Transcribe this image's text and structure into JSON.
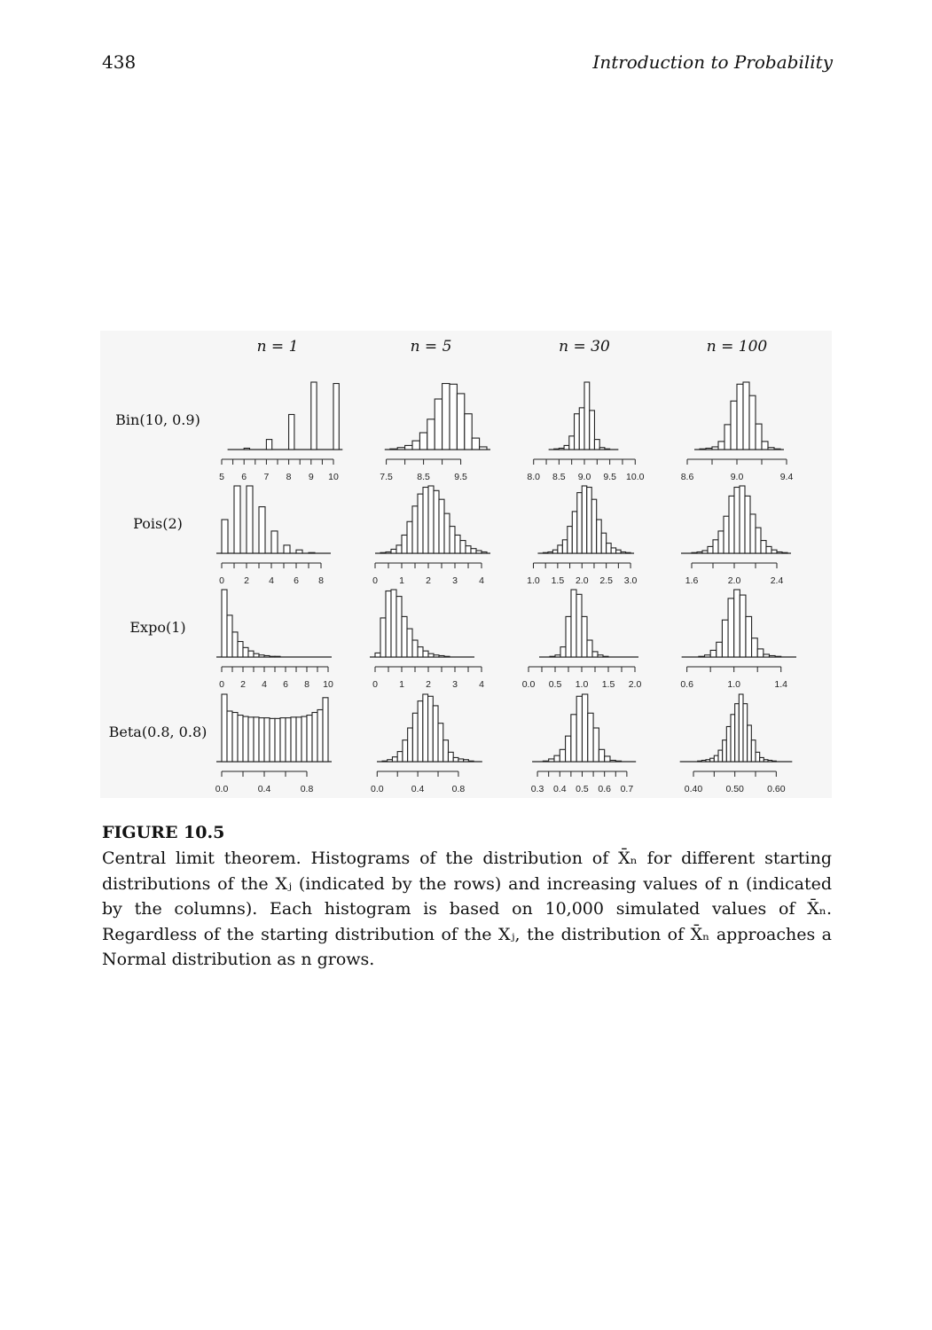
{
  "header": {
    "page_number": "438",
    "running_title": "Introduction to Probability"
  },
  "columns": [
    "n = 1",
    "n = 5",
    "n = 30",
    "n = 100"
  ],
  "rows": [
    "Bin(10, 0.9)",
    "Pois(2)",
    "Expo(1)",
    "Beta(0.8, 0.8)"
  ],
  "chart_data": [
    {
      "type": "bar",
      "row": "Bin(10, 0.9)",
      "column": "n = 1",
      "xlim": [
        5,
        10
      ],
      "ticks": [
        "5",
        "6",
        "7",
        "8",
        "9",
        "10"
      ],
      "bins": [
        5.5,
        5.75,
        6,
        6.25,
        6.5,
        6.75,
        7,
        7.25,
        7.5,
        7.75,
        8,
        8.25,
        8.5,
        8.75,
        9,
        9.25,
        9.5,
        9.75,
        10
      ],
      "values": [
        0,
        0,
        0.02,
        0,
        0,
        0,
        0.15,
        0,
        0,
        0,
        0.52,
        0,
        0,
        0,
        1.0,
        0,
        0,
        0,
        0.98
      ]
    },
    {
      "type": "bar",
      "row": "Bin(10, 0.9)",
      "column": "n = 5",
      "xlim": [
        7.2,
        10.2
      ],
      "ticks": [
        "7.5",
        "8.5",
        "9.5"
      ],
      "bins": [
        7.6,
        7.8,
        8.0,
        8.2,
        8.4,
        8.6,
        8.8,
        9.0,
        9.2,
        9.4,
        9.6,
        9.8,
        10.0
      ],
      "values": [
        0.01,
        0.03,
        0.06,
        0.13,
        0.25,
        0.45,
        0.75,
        0.98,
        0.97,
        0.83,
        0.53,
        0.17,
        0.04
      ]
    },
    {
      "type": "bar",
      "row": "Bin(10, 0.9)",
      "column": "n = 30",
      "xlim": [
        7.9,
        10.1
      ],
      "ticks": [
        "8.0",
        "8.5",
        "9.0",
        "9.5",
        "10.0"
      ],
      "bins": [
        8.4,
        8.5,
        8.6,
        8.7,
        8.8,
        8.9,
        9.0,
        9.1,
        9.2,
        9.3,
        9.4,
        9.5
      ],
      "values": [
        0.01,
        0.02,
        0.06,
        0.2,
        0.53,
        0.62,
        1.0,
        0.58,
        0.15,
        0.03,
        0.01,
        0.0
      ]
    },
    {
      "type": "bar",
      "row": "Bin(10, 0.9)",
      "column": "n = 100",
      "xlim": [
        8.55,
        9.45
      ],
      "ticks": [
        "8.6",
        "9.0",
        "9.4"
      ],
      "bins": [
        8.7,
        8.75,
        8.8,
        8.85,
        8.9,
        8.95,
        9.0,
        9.05,
        9.1,
        9.15,
        9.2,
        9.25,
        9.3
      ],
      "values": [
        0.01,
        0.02,
        0.04,
        0.12,
        0.37,
        0.72,
        0.97,
        1.0,
        0.8,
        0.38,
        0.12,
        0.03,
        0.01
      ]
    },
    {
      "type": "bar",
      "row": "Pois(2)",
      "column": "n = 1",
      "xlim": [
        0,
        9
      ],
      "ticks": [
        "0",
        "2",
        "4",
        "6",
        "8"
      ],
      "bins": [
        0,
        0.5,
        1,
        1.5,
        2,
        2.5,
        3,
        3.5,
        4,
        4.5,
        5,
        5.5,
        6,
        6.5,
        7,
        7.5,
        8
      ],
      "values": [
        0.5,
        0,
        1.0,
        0,
        1.0,
        0,
        0.69,
        0,
        0.33,
        0,
        0.12,
        0,
        0.05,
        0,
        0.01,
        0,
        0.005
      ]
    },
    {
      "type": "bar",
      "row": "Pois(2)",
      "column": "n = 5",
      "xlim": [
        0,
        4.2
      ],
      "ticks": [
        "0",
        "1",
        "2",
        "3",
        "4"
      ],
      "bins": [
        0.2,
        0.4,
        0.6,
        0.8,
        1.0,
        1.2,
        1.4,
        1.6,
        1.8,
        2.0,
        2.2,
        2.4,
        2.6,
        2.8,
        3.0,
        3.2,
        3.4,
        3.6,
        3.8,
        4.0
      ],
      "values": [
        0.01,
        0.02,
        0.06,
        0.12,
        0.27,
        0.47,
        0.7,
        0.88,
        0.98,
        1.0,
        0.93,
        0.8,
        0.59,
        0.4,
        0.27,
        0.19,
        0.11,
        0.07,
        0.04,
        0.02
      ]
    },
    {
      "type": "bar",
      "row": "Pois(2)",
      "column": "n = 30",
      "xlim": [
        0.9,
        3.2
      ],
      "ticks": [
        "1.0",
        "1.5",
        "2.0",
        "2.5",
        "3.0"
      ],
      "bins": [
        1.2,
        1.3,
        1.4,
        1.5,
        1.6,
        1.7,
        1.8,
        1.9,
        2.0,
        2.1,
        2.2,
        2.3,
        2.4,
        2.5,
        2.6,
        2.7,
        2.8,
        2.9
      ],
      "values": [
        0.01,
        0.02,
        0.05,
        0.12,
        0.2,
        0.4,
        0.62,
        0.9,
        1.0,
        0.98,
        0.8,
        0.5,
        0.3,
        0.15,
        0.08,
        0.05,
        0.02,
        0.01
      ]
    },
    {
      "type": "bar",
      "row": "Pois(2)",
      "column": "n = 100",
      "xlim": [
        1.5,
        2.55
      ],
      "ticks": [
        "1.6",
        "2.0",
        "2.4"
      ],
      "bins": [
        1.55,
        1.6,
        1.65,
        1.7,
        1.75,
        1.8,
        1.85,
        1.9,
        1.95,
        2.0,
        2.05,
        2.1,
        2.15,
        2.2,
        2.25,
        2.3,
        2.35,
        2.4,
        2.45
      ],
      "values": [
        0.0,
        0.01,
        0.02,
        0.04,
        0.1,
        0.2,
        0.33,
        0.55,
        0.85,
        0.98,
        1.0,
        0.85,
        0.58,
        0.38,
        0.19,
        0.1,
        0.05,
        0.02,
        0.01
      ]
    },
    {
      "type": "bar",
      "row": "Expo(1)",
      "column": "n = 1",
      "xlim": [
        0,
        10.5
      ],
      "ticks": [
        "0",
        "2",
        "4",
        "6",
        "8",
        "10"
      ],
      "bins": [
        0,
        0.5,
        1,
        1.5,
        2,
        2.5,
        3,
        3.5,
        4,
        4.5,
        5,
        5.5,
        6,
        6.5,
        7,
        7.5,
        8,
        8.5,
        9,
        9.5
      ],
      "values": [
        1.0,
        0.62,
        0.37,
        0.23,
        0.14,
        0.09,
        0.05,
        0.03,
        0.02,
        0.01,
        0.01,
        0.005,
        0.003,
        0.002,
        0.001,
        0.001,
        0.0,
        0.0,
        0.0,
        0.0
      ]
    },
    {
      "type": "bar",
      "row": "Expo(1)",
      "column": "n = 5",
      "xlim": [
        0,
        4.2
      ],
      "ticks": [
        "0",
        "1",
        "2",
        "3",
        "4"
      ],
      "bins": [
        0,
        0.2,
        0.4,
        0.6,
        0.8,
        1.0,
        1.2,
        1.4,
        1.6,
        1.8,
        2.0,
        2.2,
        2.4,
        2.6,
        2.8,
        3.0,
        3.2,
        3.4
      ],
      "values": [
        0.06,
        0.58,
        0.98,
        1.0,
        0.9,
        0.6,
        0.42,
        0.25,
        0.15,
        0.09,
        0.05,
        0.03,
        0.02,
        0.01,
        0.005,
        0.003,
        0.001,
        0.001
      ]
    },
    {
      "type": "bar",
      "row": "Expo(1)",
      "column": "n = 30",
      "xlim": [
        0,
        2.1
      ],
      "ticks": [
        "0.0",
        "0.5",
        "1.0",
        "1.5",
        "2.0"
      ],
      "bins": [
        0.3,
        0.4,
        0.5,
        0.6,
        0.7,
        0.8,
        0.9,
        1.0,
        1.1,
        1.2,
        1.3,
        1.4,
        1.5,
        1.6,
        1.7,
        1.8,
        1.9
      ],
      "values": [
        0.0,
        0.01,
        0.03,
        0.15,
        0.6,
        1.0,
        0.93,
        0.6,
        0.25,
        0.08,
        0.03,
        0.01,
        0.005,
        0.003,
        0.001,
        0.0,
        0.0
      ]
    },
    {
      "type": "bar",
      "row": "Expo(1)",
      "column": "n = 100",
      "xlim": [
        0.55,
        1.5
      ],
      "ticks": [
        "0.6",
        "1.0",
        "1.4"
      ],
      "bins": [
        0.6,
        0.65,
        0.7,
        0.75,
        0.8,
        0.85,
        0.9,
        0.95,
        1.0,
        1.05,
        1.1,
        1.15,
        1.2,
        1.25,
        1.3,
        1.35,
        1.4,
        1.45
      ],
      "values": [
        0.0,
        0.005,
        0.01,
        0.03,
        0.1,
        0.22,
        0.55,
        0.87,
        1.0,
        0.92,
        0.6,
        0.28,
        0.12,
        0.04,
        0.02,
        0.01,
        0.005,
        0.002
      ]
    },
    {
      "type": "bar",
      "row": "Beta(0.8, 0.8)",
      "column": "n = 1",
      "xlim": [
        0,
        1.05
      ],
      "ticks": [
        "0.0",
        "0.4",
        "0.8"
      ],
      "bins": [
        0,
        0.05,
        0.1,
        0.15,
        0.2,
        0.25,
        0.3,
        0.35,
        0.4,
        0.45,
        0.5,
        0.55,
        0.6,
        0.65,
        0.7,
        0.75,
        0.8,
        0.85,
        0.9,
        0.95
      ],
      "values": [
        1.0,
        0.75,
        0.73,
        0.69,
        0.67,
        0.66,
        0.66,
        0.65,
        0.65,
        0.64,
        0.64,
        0.65,
        0.65,
        0.66,
        0.66,
        0.67,
        0.69,
        0.73,
        0.77,
        0.95
      ]
    },
    {
      "type": "bar",
      "row": "Beta(0.8, 0.8)",
      "column": "n = 5",
      "xlim": [
        -0.02,
        1.08
      ],
      "ticks": [
        "0.0",
        "0.4",
        "0.8"
      ],
      "bins": [
        0.05,
        0.1,
        0.15,
        0.2,
        0.25,
        0.3,
        0.35,
        0.4,
        0.45,
        0.5,
        0.55,
        0.6,
        0.65,
        0.7,
        0.75,
        0.8,
        0.85,
        0.9,
        0.95
      ],
      "values": [
        0.01,
        0.03,
        0.07,
        0.15,
        0.32,
        0.5,
        0.72,
        0.9,
        1.0,
        0.97,
        0.83,
        0.57,
        0.32,
        0.14,
        0.06,
        0.04,
        0.03,
        0.01,
        0.005
      ]
    },
    {
      "type": "bar",
      "row": "Beta(0.8, 0.8)",
      "column": "n = 30",
      "xlim": [
        0.26,
        0.76
      ],
      "ticks": [
        "0.3",
        "0.4",
        "0.5",
        "0.6",
        "0.7"
      ],
      "bins": [
        0.3,
        0.325,
        0.35,
        0.375,
        0.4,
        0.425,
        0.45,
        0.475,
        0.5,
        0.525,
        0.55,
        0.575,
        0.6,
        0.625,
        0.65,
        0.675,
        0.7
      ],
      "values": [
        0.005,
        0.01,
        0.04,
        0.09,
        0.18,
        0.38,
        0.7,
        0.97,
        1.0,
        0.72,
        0.5,
        0.18,
        0.08,
        0.02,
        0.01,
        0.005,
        0.002
      ]
    },
    {
      "type": "bar",
      "row": "Beta(0.8, 0.8)",
      "column": "n = 100",
      "xlim": [
        0.37,
        0.64
      ],
      "ticks": [
        "0.40",
        "0.50",
        "0.60"
      ],
      "bins": [
        0.38,
        0.39,
        0.4,
        0.41,
        0.42,
        0.43,
        0.44,
        0.45,
        0.46,
        0.47,
        0.48,
        0.49,
        0.5,
        0.51,
        0.52,
        0.53,
        0.54,
        0.55,
        0.56,
        0.57,
        0.58,
        0.59,
        0.6,
        0.61,
        0.62
      ],
      "values": [
        0.0,
        0.0,
        0.005,
        0.01,
        0.02,
        0.03,
        0.05,
        0.09,
        0.17,
        0.32,
        0.52,
        0.7,
        0.86,
        1.0,
        0.86,
        0.54,
        0.32,
        0.14,
        0.06,
        0.03,
        0.02,
        0.01,
        0.005,
        0.0,
        0.0
      ]
    }
  ],
  "caption": {
    "label": "FIGURE 10.5",
    "text": "Central limit theorem. Histograms of the distribution of X̄ₙ for different starting distributions of the Xⱼ (indicated by the rows) and increasing values of n (indicated by the columns). Each histogram is based on 10,000 simulated values of X̄ₙ. Regardless of the starting distribution of the Xⱼ, the distribution of X̄ₙ approaches a Normal distribution as n grows."
  }
}
